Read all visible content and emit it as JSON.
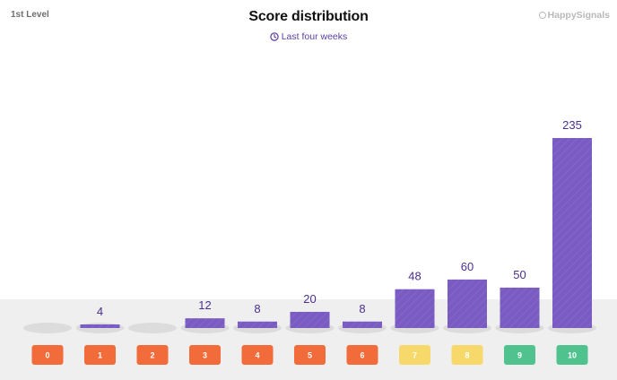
{
  "header": {
    "level": "1st Level",
    "title": "Score distribution",
    "timerange": "Last four weeks",
    "logo": "HappySignals"
  },
  "icons": {
    "clock": "clock-icon",
    "logo": "happysignals-logo-icon"
  },
  "colors": {
    "bar": "#7a5bc1",
    "detractor": "#f26b3a",
    "passive": "#f7d96b",
    "promoter": "#4fc28e",
    "title": "#111111",
    "accent": "#5b3fa3"
  },
  "chart_data": {
    "type": "bar",
    "title": "Score distribution",
    "categories": [
      "0",
      "1",
      "2",
      "3",
      "4",
      "5",
      "6",
      "7",
      "8",
      "9",
      "10"
    ],
    "values": [
      0,
      4,
      0,
      12,
      8,
      20,
      8,
      48,
      60,
      50,
      235
    ],
    "category_groups": [
      "detractor",
      "detractor",
      "detractor",
      "detractor",
      "detractor",
      "detractor",
      "detractor",
      "passive",
      "passive",
      "promoter",
      "promoter"
    ],
    "ylim": [
      0,
      235
    ],
    "grid": false,
    "legend": "none"
  }
}
